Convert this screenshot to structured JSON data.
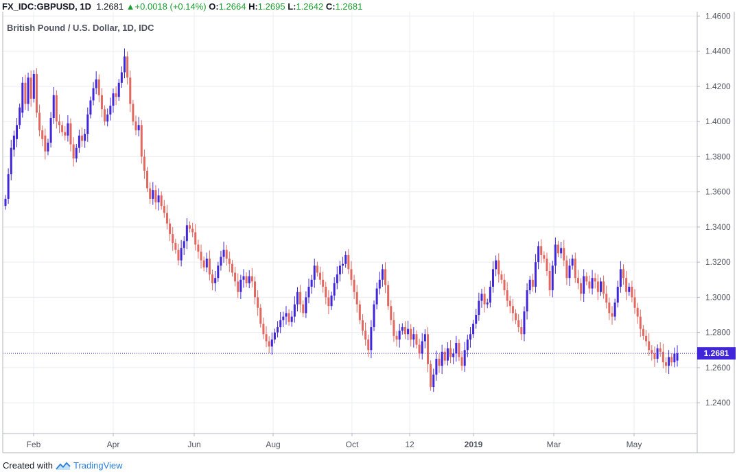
{
  "header": {
    "symbol": "FX_IDC:GBPUSD, 1D",
    "last": "1.2681",
    "change_arrow": "▲",
    "change": "+0.0018 (+0.14%)",
    "o_label": "O:",
    "o_value": "1.2664",
    "h_label": "H:",
    "h_value": "1.2695",
    "l_label": "L:",
    "l_value": "1.2642",
    "c_label": "C:",
    "c_value": "1.2681"
  },
  "subtitle": "British Pound / U.S. Dollar, 1D, IDC",
  "footer": {
    "created_with": "Created with",
    "brand": "TradingView",
    "logo_icon": "tradingview-logo-icon"
  },
  "colors": {
    "up": "#3f26d9",
    "down": "#e2685f",
    "price_tag": "#3f26d9",
    "grid": "#e9ecf2",
    "axis_text": "#50535e"
  },
  "chart_data": {
    "type": "candlestick",
    "title": "British Pound / U.S. Dollar, 1D, IDC",
    "ylim": [
      1.2225,
      1.4625
    ],
    "y_ticks": [
      "1.4600",
      "1.4400",
      "1.4200",
      "1.4000",
      "1.3800",
      "1.3600",
      "1.3400",
      "1.3200",
      "1.3000",
      "1.2800",
      "1.2600",
      "1.2400"
    ],
    "x_ticks": [
      "Feb",
      "Apr",
      "Jun",
      "Aug",
      "Oct",
      "12",
      "2019",
      "Mar",
      "May"
    ],
    "last_price": 1.2681,
    "last_price_label": "1.2681",
    "grid": true,
    "series": [
      {
        "name": "GBPUSD",
        "points": [
          [
            1.352,
            1.356
          ],
          [
            1.356,
            1.37
          ],
          [
            1.37,
            1.385
          ],
          [
            1.384,
            1.392
          ],
          [
            1.39,
            1.398
          ],
          [
            1.398,
            1.408
          ],
          [
            1.405,
            1.422
          ],
          [
            1.422,
            1.41
          ],
          [
            1.41,
            1.425
          ],
          [
            1.425,
            1.413
          ],
          [
            1.413,
            1.427
          ],
          [
            1.427,
            1.405
          ],
          [
            1.405,
            1.395
          ],
          [
            1.395,
            1.39
          ],
          [
            1.392,
            1.383
          ],
          [
            1.383,
            1.388
          ],
          [
            1.388,
            1.402
          ],
          [
            1.402,
            1.415
          ],
          [
            1.415,
            1.4
          ],
          [
            1.4,
            1.398
          ],
          [
            1.398,
            1.394
          ],
          [
            1.394,
            1.392
          ],
          [
            1.392,
            1.399
          ],
          [
            1.399,
            1.387
          ],
          [
            1.387,
            1.379
          ],
          [
            1.379,
            1.385
          ],
          [
            1.385,
            1.392
          ],
          [
            1.392,
            1.389
          ],
          [
            1.389,
            1.393
          ],
          [
            1.393,
            1.404
          ],
          [
            1.404,
            1.412
          ],
          [
            1.412,
            1.419
          ],
          [
            1.419,
            1.424
          ],
          [
            1.424,
            1.415
          ],
          [
            1.415,
            1.407
          ],
          [
            1.407,
            1.4
          ],
          [
            1.4,
            1.404
          ],
          [
            1.404,
            1.409
          ],
          [
            1.409,
            1.416
          ],
          [
            1.416,
            1.414
          ],
          [
            1.414,
            1.422
          ],
          [
            1.422,
            1.428
          ],
          [
            1.428,
            1.437
          ],
          [
            1.437,
            1.425
          ],
          [
            1.425,
            1.41
          ],
          [
            1.41,
            1.4
          ],
          [
            1.4,
            1.395
          ],
          [
            1.395,
            1.398
          ],
          [
            1.398,
            1.38
          ],
          [
            1.38,
            1.372
          ],
          [
            1.372,
            1.362
          ],
          [
            1.362,
            1.356
          ],
          [
            1.356,
            1.361
          ],
          [
            1.361,
            1.354
          ],
          [
            1.354,
            1.358
          ],
          [
            1.358,
            1.352
          ],
          [
            1.352,
            1.348
          ],
          [
            1.348,
            1.342
          ],
          [
            1.342,
            1.336
          ],
          [
            1.336,
            1.331
          ],
          [
            1.331,
            1.327
          ],
          [
            1.327,
            1.321
          ],
          [
            1.321,
            1.328
          ],
          [
            1.328,
            1.332
          ],
          [
            1.332,
            1.341
          ],
          [
            1.341,
            1.339
          ],
          [
            1.339,
            1.337
          ],
          [
            1.337,
            1.33
          ],
          [
            1.33,
            1.326
          ],
          [
            1.326,
            1.321
          ],
          [
            1.321,
            1.317
          ],
          [
            1.317,
            1.322
          ],
          [
            1.322,
            1.313
          ],
          [
            1.313,
            1.308
          ],
          [
            1.308,
            1.311
          ],
          [
            1.311,
            1.318
          ],
          [
            1.318,
            1.323
          ],
          [
            1.323,
            1.327
          ],
          [
            1.327,
            1.322
          ],
          [
            1.322,
            1.319
          ],
          [
            1.319,
            1.314
          ],
          [
            1.314,
            1.309
          ],
          [
            1.309,
            1.303
          ],
          [
            1.303,
            1.31
          ],
          [
            1.31,
            1.312
          ],
          [
            1.312,
            1.308
          ],
          [
            1.308,
            1.312
          ],
          [
            1.312,
            1.309
          ],
          [
            1.309,
            1.3
          ],
          [
            1.3,
            1.294
          ],
          [
            1.294,
            1.285
          ],
          [
            1.285,
            1.279
          ],
          [
            1.279,
            1.275
          ],
          [
            1.275,
            1.272
          ],
          [
            1.272,
            1.276
          ],
          [
            1.276,
            1.28
          ],
          [
            1.28,
            1.283
          ],
          [
            1.283,
            1.287
          ],
          [
            1.287,
            1.289
          ],
          [
            1.289,
            1.291
          ],
          [
            1.291,
            1.286
          ],
          [
            1.286,
            1.289
          ],
          [
            1.289,
            1.296
          ],
          [
            1.296,
            1.303
          ],
          [
            1.303,
            1.296
          ],
          [
            1.296,
            1.291
          ],
          [
            1.291,
            1.3
          ],
          [
            1.3,
            1.306
          ],
          [
            1.306,
            1.31
          ],
          [
            1.31,
            1.318
          ],
          [
            1.318,
            1.314
          ],
          [
            1.314,
            1.31
          ],
          [
            1.31,
            1.306
          ],
          [
            1.306,
            1.3
          ],
          [
            1.3,
            1.295
          ],
          [
            1.295,
            1.301
          ],
          [
            1.301,
            1.308
          ],
          [
            1.308,
            1.313
          ],
          [
            1.313,
            1.318
          ],
          [
            1.318,
            1.319
          ],
          [
            1.319,
            1.324
          ],
          [
            1.324,
            1.316
          ],
          [
            1.316,
            1.31
          ],
          [
            1.31,
            1.303
          ],
          [
            1.303,
            1.296
          ],
          [
            1.296,
            1.287
          ],
          [
            1.287,
            1.281
          ],
          [
            1.281,
            1.276
          ],
          [
            1.276,
            1.27
          ],
          [
            1.27,
            1.283
          ],
          [
            1.283,
            1.296
          ],
          [
            1.296,
            1.305
          ],
          [
            1.305,
            1.31
          ],
          [
            1.31,
            1.316
          ],
          [
            1.316,
            1.307
          ],
          [
            1.307,
            1.295
          ],
          [
            1.295,
            1.287
          ],
          [
            1.287,
            1.278
          ],
          [
            1.278,
            1.276
          ],
          [
            1.276,
            1.281
          ],
          [
            1.281,
            1.283
          ],
          [
            1.283,
            1.279
          ],
          [
            1.279,
            1.282
          ],
          [
            1.282,
            1.276
          ],
          [
            1.276,
            1.279
          ],
          [
            1.279,
            1.273
          ],
          [
            1.273,
            1.268
          ],
          [
            1.268,
            1.275
          ],
          [
            1.275,
            1.279
          ],
          [
            1.279,
            1.262
          ],
          [
            1.262,
            1.249
          ],
          [
            1.249,
            1.256
          ],
          [
            1.256,
            1.265
          ],
          [
            1.265,
            1.261
          ],
          [
            1.261,
            1.269
          ],
          [
            1.269,
            1.264
          ],
          [
            1.264,
            1.271
          ],
          [
            1.271,
            1.266
          ],
          [
            1.266,
            1.268
          ],
          [
            1.268,
            1.274
          ],
          [
            1.274,
            1.266
          ],
          [
            1.266,
            1.261
          ],
          [
            1.261,
            1.27
          ],
          [
            1.27,
            1.276
          ],
          [
            1.276,
            1.279
          ],
          [
            1.279,
            1.285
          ],
          [
            1.285,
            1.29
          ],
          [
            1.29,
            1.298
          ],
          [
            1.298,
            1.302
          ],
          [
            1.302,
            1.296
          ],
          [
            1.296,
            1.297
          ],
          [
            1.297,
            1.306
          ],
          [
            1.306,
            1.316
          ],
          [
            1.316,
            1.321
          ],
          [
            1.321,
            1.313
          ],
          [
            1.313,
            1.31
          ],
          [
            1.31,
            1.304
          ],
          [
            1.304,
            1.298
          ],
          [
            1.298,
            1.295
          ],
          [
            1.295,
            1.291
          ],
          [
            1.291,
            1.287
          ],
          [
            1.287,
            1.283
          ],
          [
            1.283,
            1.279
          ],
          [
            1.279,
            1.292
          ],
          [
            1.292,
            1.304
          ],
          [
            1.304,
            1.31
          ],
          [
            1.31,
            1.306
          ],
          [
            1.306,
            1.32
          ],
          [
            1.32,
            1.329
          ],
          [
            1.329,
            1.324
          ],
          [
            1.324,
            1.322
          ],
          [
            1.322,
            1.315
          ],
          [
            1.315,
            1.304
          ],
          [
            1.304,
            1.318
          ],
          [
            1.318,
            1.33
          ],
          [
            1.33,
            1.325
          ],
          [
            1.325,
            1.328
          ],
          [
            1.328,
            1.321
          ],
          [
            1.321,
            1.311
          ],
          [
            1.311,
            1.318
          ],
          [
            1.318,
            1.322
          ],
          [
            1.322,
            1.311
          ],
          [
            1.311,
            1.308
          ],
          [
            1.308,
            1.302
          ],
          [
            1.302,
            1.312
          ],
          [
            1.312,
            1.309
          ],
          [
            1.309,
            1.305
          ],
          [
            1.305,
            1.311
          ],
          [
            1.311,
            1.309
          ],
          [
            1.309,
            1.303
          ],
          [
            1.303,
            1.309
          ],
          [
            1.309,
            1.302
          ],
          [
            1.302,
            1.297
          ],
          [
            1.297,
            1.291
          ],
          [
            1.291,
            1.289
          ],
          [
            1.289,
            1.297
          ],
          [
            1.297,
            1.306
          ],
          [
            1.306,
            1.316
          ],
          [
            1.316,
            1.311
          ],
          [
            1.311,
            1.303
          ],
          [
            1.303,
            1.306
          ],
          [
            1.306,
            1.3
          ],
          [
            1.3,
            1.294
          ],
          [
            1.294,
            1.289
          ],
          [
            1.289,
            1.282
          ],
          [
            1.282,
            1.278
          ],
          [
            1.278,
            1.275
          ],
          [
            1.275,
            1.27
          ],
          [
            1.27,
            1.268
          ],
          [
            1.268,
            1.265
          ],
          [
            1.265,
            1.271
          ],
          [
            1.271,
            1.269
          ],
          [
            1.269,
            1.263
          ],
          [
            1.263,
            1.261
          ],
          [
            1.261,
            1.266
          ],
          [
            1.266,
            1.263
          ],
          [
            1.263,
            1.268
          ],
          [
            1.264,
            1.2681
          ]
        ]
      }
    ]
  }
}
